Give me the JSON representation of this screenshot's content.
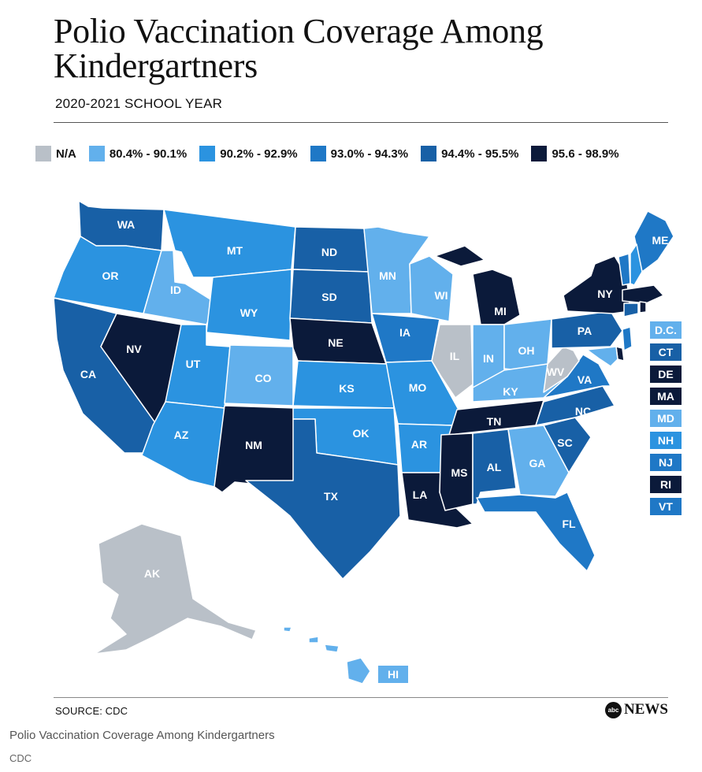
{
  "title": "Polio Vaccination Coverage Among Kindergartners",
  "subtitle": "2020-2021 SCHOOL YEAR",
  "legend": [
    {
      "key": "na",
      "label": "N/A",
      "color": "#b9c0c8"
    },
    {
      "key": "c1",
      "label": "80.4% - 90.1%",
      "color": "#62b0ec"
    },
    {
      "key": "c2",
      "label": "90.2% - 92.9%",
      "color": "#2b93e0"
    },
    {
      "key": "c3",
      "label": "93.0% - 94.3%",
      "color": "#1f78c6"
    },
    {
      "key": "c4",
      "label": "94.4% - 95.5%",
      "color": "#1860a6"
    },
    {
      "key": "c5",
      "label": "95.6 - 98.9%",
      "color": "#0b1a3a"
    }
  ],
  "states": [
    {
      "code": "WA",
      "range": "c4"
    },
    {
      "code": "OR",
      "range": "c2"
    },
    {
      "code": "CA",
      "range": "c4"
    },
    {
      "code": "NV",
      "range": "c5"
    },
    {
      "code": "ID",
      "range": "c1"
    },
    {
      "code": "MT",
      "range": "c2"
    },
    {
      "code": "WY",
      "range": "c2"
    },
    {
      "code": "UT",
      "range": "c2"
    },
    {
      "code": "AZ",
      "range": "c2"
    },
    {
      "code": "CO",
      "range": "c1"
    },
    {
      "code": "NM",
      "range": "c5"
    },
    {
      "code": "ND",
      "range": "c4"
    },
    {
      "code": "SD",
      "range": "c4"
    },
    {
      "code": "NE",
      "range": "c5"
    },
    {
      "code": "KS",
      "range": "c2"
    },
    {
      "code": "OK",
      "range": "c2"
    },
    {
      "code": "TX",
      "range": "c4"
    },
    {
      "code": "MN",
      "range": "c1"
    },
    {
      "code": "IA",
      "range": "c3"
    },
    {
      "code": "MO",
      "range": "c2"
    },
    {
      "code": "AR",
      "range": "c2"
    },
    {
      "code": "LA",
      "range": "c5"
    },
    {
      "code": "WI",
      "range": "c1"
    },
    {
      "code": "IL",
      "range": "na"
    },
    {
      "code": "MI",
      "range": "c5"
    },
    {
      "code": "IN",
      "range": "c1"
    },
    {
      "code": "OH",
      "range": "c1"
    },
    {
      "code": "KY",
      "range": "c1"
    },
    {
      "code": "TN",
      "range": "c5"
    },
    {
      "code": "MS",
      "range": "c5"
    },
    {
      "code": "AL",
      "range": "c4"
    },
    {
      "code": "GA",
      "range": "c1"
    },
    {
      "code": "FL",
      "range": "c3"
    },
    {
      "code": "SC",
      "range": "c4"
    },
    {
      "code": "NC",
      "range": "c4"
    },
    {
      "code": "VA",
      "range": "c3"
    },
    {
      "code": "WV",
      "range": "na"
    },
    {
      "code": "PA",
      "range": "c4"
    },
    {
      "code": "NY",
      "range": "c5"
    },
    {
      "code": "ME",
      "range": "c3"
    },
    {
      "code": "AK",
      "range": "na"
    },
    {
      "code": "HI",
      "range": "c1"
    }
  ],
  "small_states": [
    {
      "code": "D.C.",
      "range": "c1"
    },
    {
      "code": "CT",
      "range": "c4"
    },
    {
      "code": "DE",
      "range": "c5"
    },
    {
      "code": "MA",
      "range": "c5"
    },
    {
      "code": "MD",
      "range": "c1"
    },
    {
      "code": "NH",
      "range": "c2"
    },
    {
      "code": "NJ",
      "range": "c3"
    },
    {
      "code": "RI",
      "range": "c5"
    },
    {
      "code": "VT",
      "range": "c3"
    }
  ],
  "source": "SOURCE: CDC",
  "brand": {
    "logo": "abc",
    "text": "NEWS"
  },
  "caption": "Polio Vaccination Coverage Among Kindergartners",
  "credit": "CDC"
}
